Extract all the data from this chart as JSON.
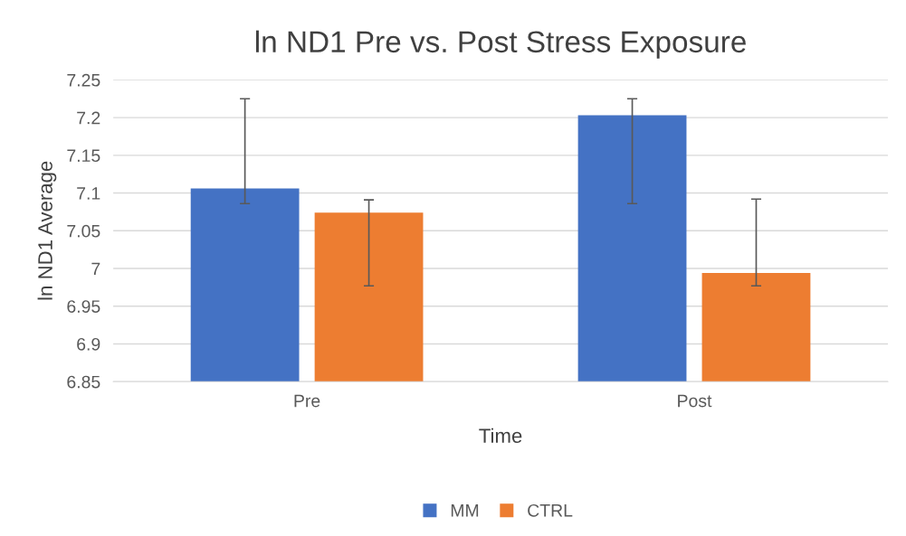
{
  "chart_data": {
    "type": "bar",
    "title": "ln ND1 Pre vs. Post Stress Exposure",
    "xlabel": "Time",
    "ylabel": "ln ND1 Average",
    "categories": [
      "Pre",
      "Post"
    ],
    "series": [
      {
        "name": "MM",
        "color": "#4472c4",
        "values": [
          7.106,
          7.203
        ],
        "errors": [
          [
            7.086,
            7.225
          ],
          [
            7.086,
            7.225
          ]
        ]
      },
      {
        "name": "CTRL",
        "color": "#ed7d31",
        "values": [
          7.074,
          6.994
        ],
        "errors": [
          [
            6.977,
            7.091
          ],
          [
            6.977,
            7.092
          ]
        ]
      }
    ],
    "ylim": [
      6.85,
      7.25
    ],
    "yticks": [
      6.85,
      6.9,
      6.95,
      7,
      7.05,
      7.1,
      7.15,
      7.2,
      7.25
    ],
    "grid": "y",
    "legend": "bottom"
  }
}
